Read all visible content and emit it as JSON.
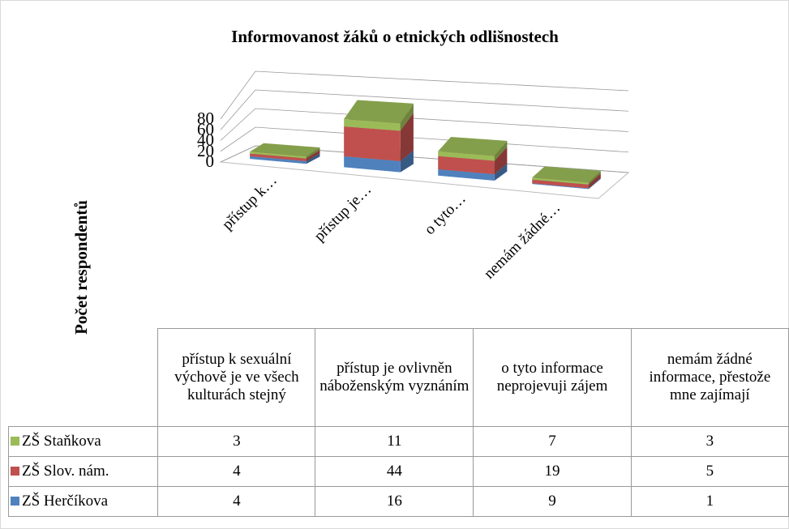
{
  "chart_data": {
    "type": "bar3d_stacked",
    "title": "Informovanost žáků o etnických odlišnostech",
    "ylabel": "Počet respondentů",
    "categories": [
      "přístup k sexuální výchově je ve všech kulturách stejný",
      "přístup je ovlivněn náboženským vyznáním",
      "o tyto informace neprojevuji zájem",
      "nemám žádné informace, přestože mne zajímají"
    ],
    "category_labels": [
      "přístup k…",
      "přístup je…",
      "o tyto…",
      "nemám žádné…"
    ],
    "series": [
      {
        "name": "ZŠ Herčíkova",
        "color": "#4f81bd",
        "values": [
          4,
          16,
          9,
          1
        ]
      },
      {
        "name": "ZŠ Slov. nám.",
        "color": "#c0504d",
        "values": [
          4,
          44,
          19,
          5
        ]
      },
      {
        "name": "ZŠ Staňkova",
        "color": "#9bbb59",
        "values": [
          3,
          11,
          7,
          3
        ]
      }
    ],
    "ylim": [
      0,
      80
    ],
    "yticks": [
      0,
      20,
      40,
      60,
      80
    ],
    "grid": true,
    "data_table": true
  }
}
